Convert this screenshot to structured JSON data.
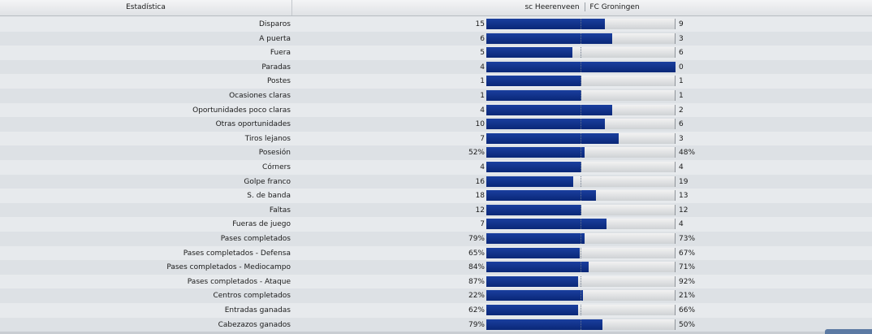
{
  "header": {
    "stat_col": "Estadística",
    "home_team": "sc Heerenveen",
    "away_team": "FC Groningen"
  },
  "colors": {
    "bar_fill": "#0a2777",
    "bar_bg": "#d8dadd"
  },
  "rows": [
    {
      "label": "Disparos",
      "home": "15",
      "away": "9",
      "share": 0.625
    },
    {
      "label": "A puerta",
      "home": "6",
      "away": "3",
      "share": 0.6667
    },
    {
      "label": "Fuera",
      "home": "5",
      "away": "6",
      "share": 0.4545
    },
    {
      "label": "Paradas",
      "home": "4",
      "away": "0",
      "share": 1.0
    },
    {
      "label": "Postes",
      "home": "1",
      "away": "1",
      "share": 0.5
    },
    {
      "label": "Ocasiones claras",
      "home": "1",
      "away": "1",
      "share": 0.5
    },
    {
      "label": "Oportunidades poco claras",
      "home": "4",
      "away": "2",
      "share": 0.6667
    },
    {
      "label": "Otras oportunidades",
      "home": "10",
      "away": "6",
      "share": 0.625
    },
    {
      "label": "Tiros lejanos",
      "home": "7",
      "away": "3",
      "share": 0.7
    },
    {
      "label": "Posesión",
      "home": "52%",
      "away": "48%",
      "share": 0.52
    },
    {
      "label": "Córners",
      "home": "4",
      "away": "4",
      "share": 0.5
    },
    {
      "label": "Golpe franco",
      "home": "16",
      "away": "19",
      "share": 0.4571
    },
    {
      "label": "S. de banda",
      "home": "18",
      "away": "13",
      "share": 0.5806
    },
    {
      "label": "Faltas",
      "home": "12",
      "away": "12",
      "share": 0.5
    },
    {
      "label": "Fueras de juego",
      "home": "7",
      "away": "4",
      "share": 0.6364
    },
    {
      "label": "Pases completados",
      "home": "79%",
      "away": "73%",
      "share": 0.5197
    },
    {
      "label": "Pases completados - Defensa",
      "home": "65%",
      "away": "67%",
      "share": 0.4924
    },
    {
      "label": "Pases completados - Mediocampo",
      "home": "84%",
      "away": "71%",
      "share": 0.5419
    },
    {
      "label": "Pases completados - Ataque",
      "home": "87%",
      "away": "92%",
      "share": 0.486
    },
    {
      "label": "Centros completados",
      "home": "22%",
      "away": "21%",
      "share": 0.5116
    },
    {
      "label": "Entradas ganadas",
      "home": "62%",
      "away": "66%",
      "share": 0.4844
    },
    {
      "label": "Cabezazos ganados",
      "home": "79%",
      "away": "50%",
      "share": 0.6124
    }
  ]
}
